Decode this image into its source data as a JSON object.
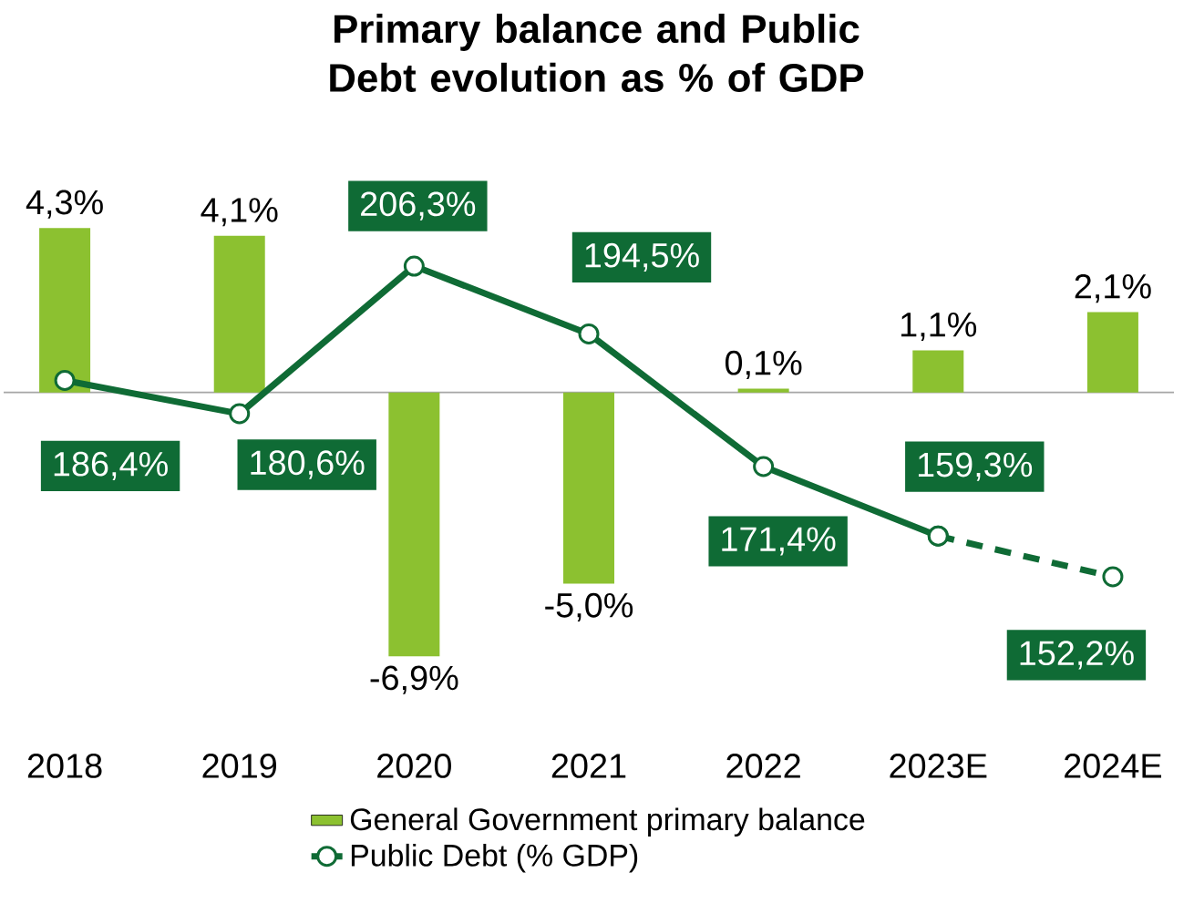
{
  "chart_data": {
    "type": "bar",
    "title": "Primary balance and Public Debt evolution as % of GDP",
    "categories": [
      "2018",
      "2019",
      "2020",
      "2021",
      "2022",
      "2023E",
      "2024E"
    ],
    "series": [
      {
        "name": "General Government primary balance",
        "color": "#8cc130",
        "values": [
          4.3,
          4.1,
          -6.9,
          -5.0,
          0.1,
          1.1,
          2.1
        ],
        "value_labels": [
          "4,3%",
          "4,1%",
          "-6,9%",
          "-5,0%",
          "0,1%",
          "1,1%",
          "2,1%"
        ]
      },
      {
        "name": "Public Debt (% GDP)",
        "type": "line",
        "axis": "y2",
        "color": "#0f6b35",
        "marker": "circle",
        "line_style": "solid",
        "values": [
          186.4,
          180.6,
          206.3,
          194.5,
          171.4,
          159.3,
          null
        ],
        "value_labels": [
          "186,4%",
          "180,6%",
          "206,3%",
          "194,5%",
          "171,4%",
          "159,3%",
          null
        ]
      },
      {
        "type": "line",
        "axis": "y2",
        "color": "#0f6b35",
        "marker": "circle",
        "line_style": "dashed",
        "values": [
          null,
          null,
          null,
          null,
          null,
          159.3,
          152.2
        ],
        "value_labels": [
          null,
          null,
          null,
          null,
          null,
          null,
          "152,2%"
        ]
      }
    ],
    "legend": "bottom"
  }
}
